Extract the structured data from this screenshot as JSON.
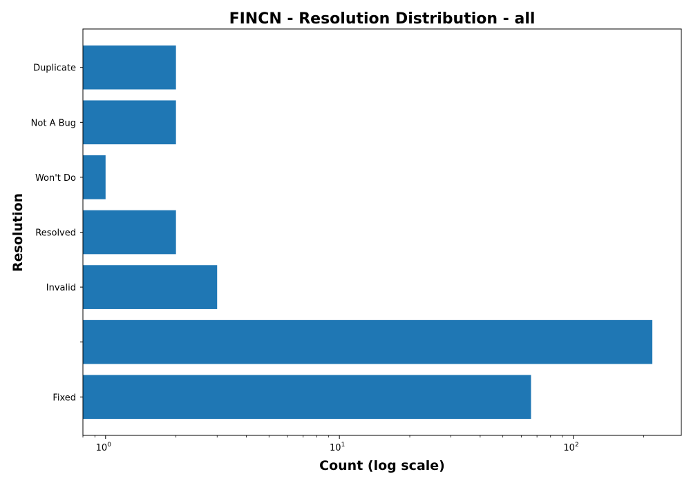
{
  "chart_data": {
    "type": "bar",
    "orientation": "horizontal",
    "title": "FINCN - Resolution Distribution - all",
    "xlabel": "Count (log scale)",
    "ylabel": "Resolution",
    "xscale": "log",
    "xlim": [
      0.8,
      290
    ],
    "x_ticks": [
      {
        "value": 1,
        "base": "10",
        "exp": "0"
      },
      {
        "value": 10,
        "base": "10",
        "exp": "1"
      },
      {
        "value": 100,
        "base": "10",
        "exp": "2"
      }
    ],
    "categories": [
      "Fixed",
      "",
      "Invalid",
      "Resolved",
      "Won't Do",
      "Not A Bug",
      "Duplicate"
    ],
    "values": [
      66,
      218,
      3,
      2,
      1,
      2,
      2
    ],
    "bar_color": "#1f77b4",
    "grid": false,
    "legend": "none"
  }
}
